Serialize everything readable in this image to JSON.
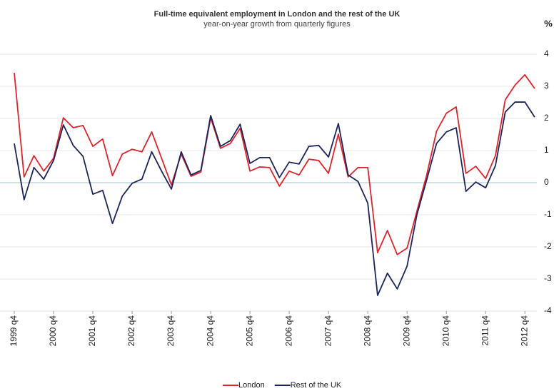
{
  "chart_data": {
    "type": "line",
    "title": "Full-time equivalent employment in London and the rest of the UK",
    "subtitle": "year-on-year growth from quarterly figures",
    "y_label": "%",
    "categories": [
      "1999 q4",
      null,
      null,
      null,
      "2000 q4",
      null,
      null,
      null,
      "2001 q4",
      null,
      null,
      null,
      "2002 q4",
      null,
      null,
      null,
      "2003 q4",
      null,
      null,
      null,
      "2004 q4",
      null,
      null,
      null,
      "2005 q4",
      null,
      null,
      null,
      "2006 q4",
      null,
      null,
      null,
      "2007 q4",
      null,
      null,
      null,
      "2008 q4",
      null,
      null,
      null,
      "2009 q4",
      null,
      null,
      null,
      "2010 q4",
      null,
      null,
      null,
      "2011 q4",
      null,
      null,
      null,
      "2012 q4",
      null
    ],
    "series": [
      {
        "name": "London",
        "color": "#d9262e",
        "values": [
          3.42,
          0.18,
          0.84,
          0.36,
          0.76,
          2.02,
          1.71,
          1.78,
          1.13,
          1.36,
          0.22,
          0.89,
          1.04,
          0.96,
          1.58,
          0.76,
          -0.07,
          0.89,
          0.2,
          0.33,
          2.02,
          1.07,
          1.22,
          1.69,
          0.36,
          0.49,
          0.47,
          -0.11,
          0.36,
          0.24,
          0.73,
          0.69,
          0.29,
          1.51,
          0.18,
          0.47,
          0.47,
          -2.18,
          -1.49,
          -2.24,
          -2.04,
          -0.89,
          0.24,
          1.6,
          2.16,
          2.36,
          0.29,
          0.51,
          0.13,
          0.84,
          2.58,
          3.04,
          3.36,
          2.93
        ]
      },
      {
        "name": "Rest of the UK",
        "color": "#1c2559",
        "values": [
          1.22,
          -0.53,
          0.47,
          0.11,
          0.69,
          1.8,
          1.16,
          0.82,
          -0.36,
          -0.24,
          -1.27,
          -0.42,
          -0.02,
          0.11,
          0.96,
          0.36,
          -0.2,
          0.96,
          0.24,
          0.38,
          2.09,
          1.13,
          1.31,
          1.82,
          0.6,
          0.78,
          0.78,
          0.16,
          0.64,
          0.58,
          1.13,
          1.16,
          0.8,
          1.84,
          0.24,
          0.04,
          -0.64,
          -3.51,
          -2.82,
          -3.31,
          -2.6,
          -1.0,
          0.09,
          1.22,
          1.58,
          1.71,
          -0.27,
          0.02,
          -0.16,
          0.53,
          2.2,
          2.51,
          2.51,
          2.04
        ]
      }
    ],
    "ylim": [
      -4,
      4
    ],
    "yticks": [
      4,
      3,
      2,
      1,
      0,
      -1,
      -2,
      -3,
      -4
    ],
    "grid": true,
    "legend": "bottom"
  }
}
